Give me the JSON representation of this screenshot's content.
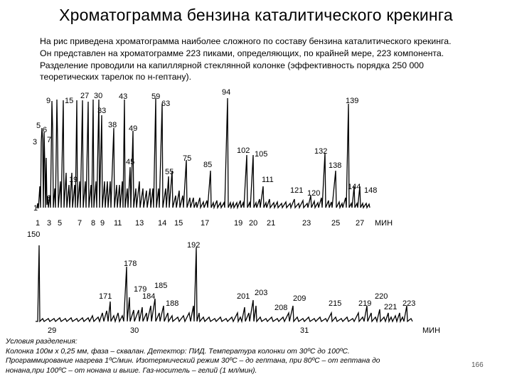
{
  "slide": {
    "title": "Хроматограмма бензина каталитического крекинга",
    "intro": [
      "На рис приведена хроматограмма наиболее сложного по составу бензина каталитического крекинга.",
      "Он представлен на хроматограмме 223 пиками, определяющих, по крайней мере, 223 компонента.",
      "Разделение проводили на капиллярной стеклянной колонке (эффективность порядка 250 000",
      "теоретических тарелок по н-гептану)."
    ],
    "conditions": [
      "Условия разделения:",
      "Колонка 100м х 0,25 мм, фаза – сквалан. Детектор: ПИД. Температура колонки от 30ºС до 100ºС.",
      "Программирование нагрева 1ºС/мин. Изотермический режим 30ºС – до гептана, при 80ºС – от гептана до",
      "нонана,при 100ºС – от нонана и выше. Газ-носитель – гелий (1 мл/мин)."
    ],
    "slide_number": "166"
  },
  "chromatogram_top": {
    "axis_unit": "МИН",
    "time_ticks": [
      "1",
      "3",
      "5",
      "7",
      "8",
      "9",
      "11",
      "13",
      "14",
      "15",
      "17",
      "19",
      "20",
      "21",
      "23",
      "25",
      "27"
    ],
    "peak_labels": [
      "1",
      "3",
      "5",
      "6",
      "7",
      "8",
      "9",
      "15",
      "19",
      "27",
      "30",
      "33",
      "38",
      "43",
      "45",
      "49",
      "55",
      "59",
      "63",
      "75",
      "85",
      "94",
      "102",
      "105",
      "111",
      "120",
      "121",
      "132",
      "138",
      "139",
      "144",
      "148"
    ]
  },
  "chromatogram_bottom": {
    "axis_unit": "МИН",
    "time_ticks": [
      "29",
      "30",
      "31"
    ],
    "peak_labels": [
      "150",
      "171",
      "178",
      "179",
      "184",
      "185",
      "188",
      "192",
      "201",
      "203",
      "208",
      "209",
      "215",
      "219",
      "220",
      "221",
      "223"
    ]
  }
}
